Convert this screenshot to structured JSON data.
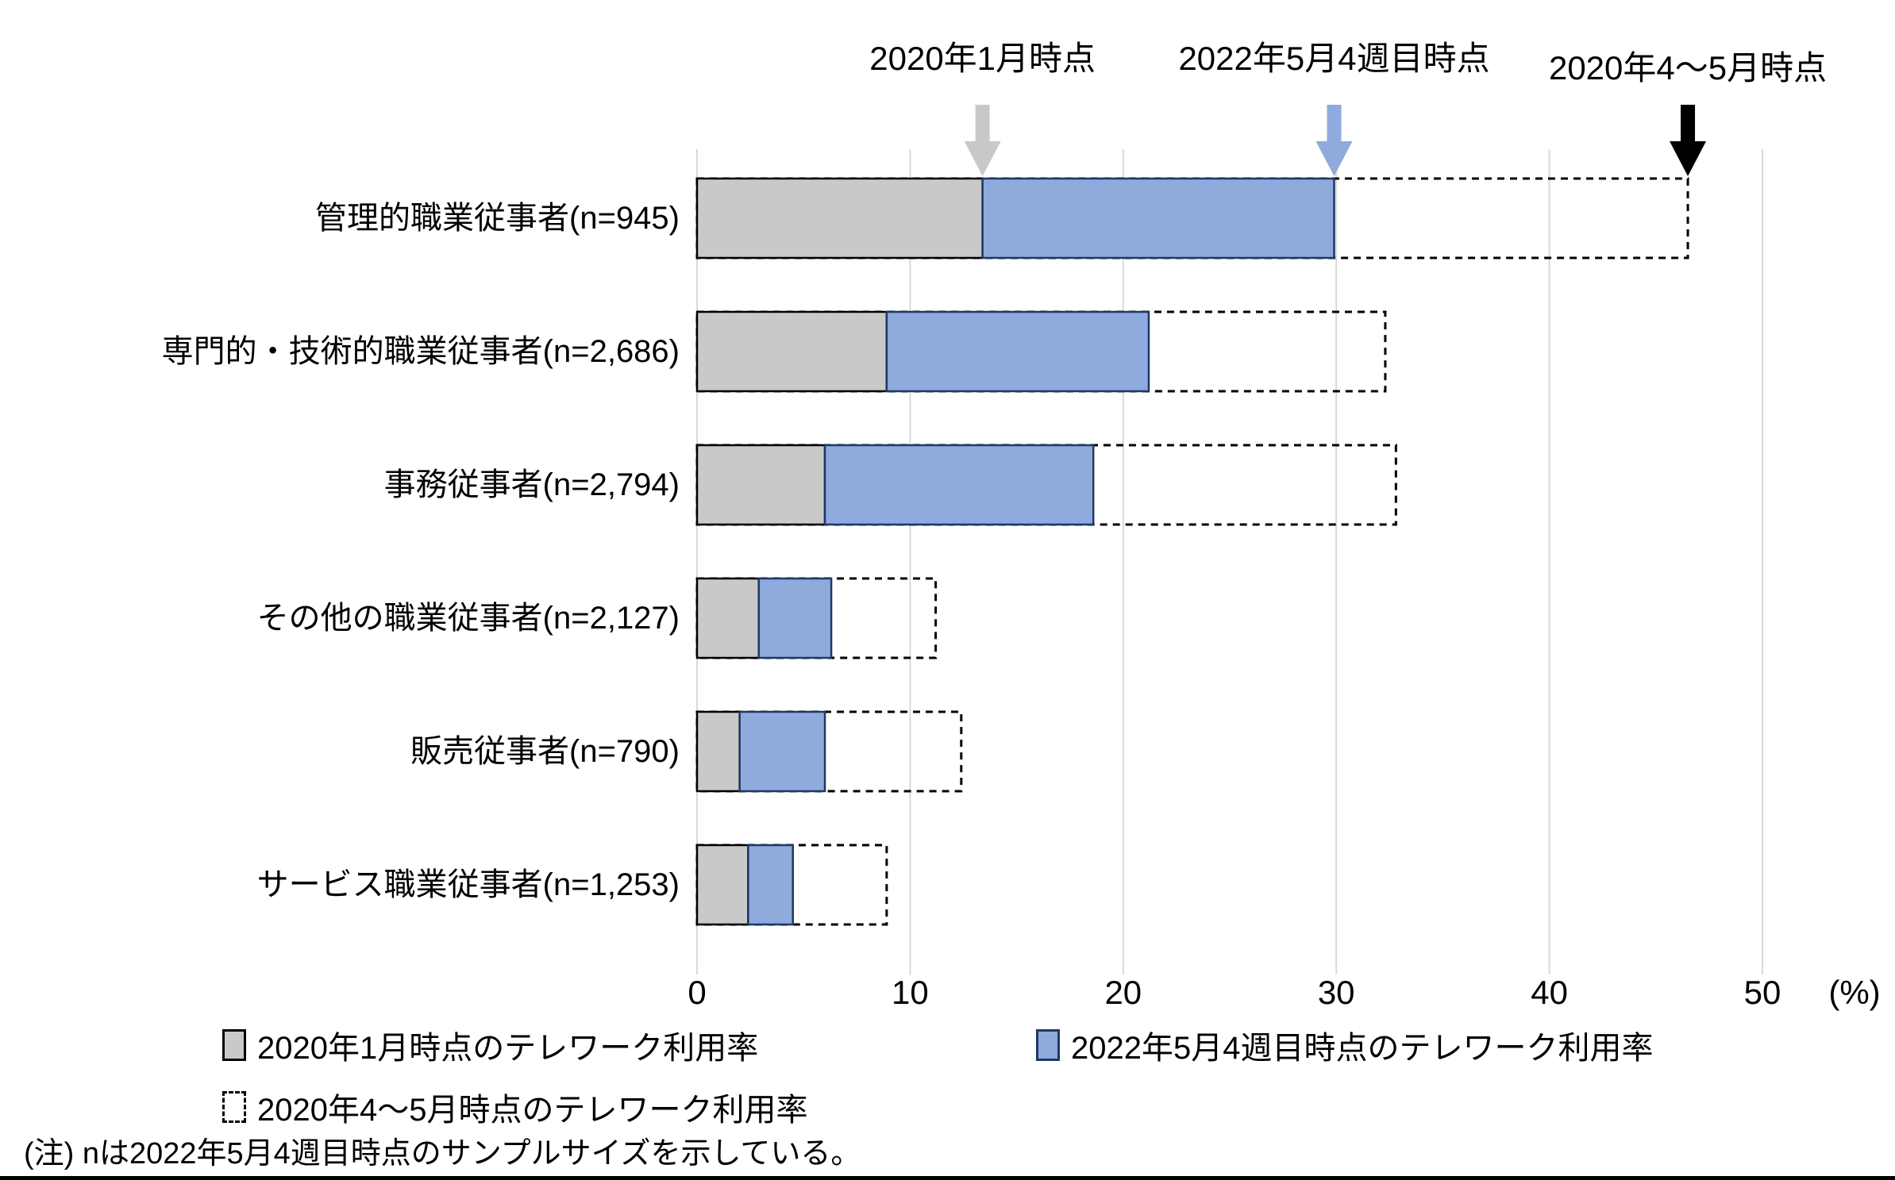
{
  "chart_data": {
    "type": "bar",
    "orientation": "horizontal",
    "title": "",
    "xlabel": "",
    "ylabel": "",
    "x_unit_label": "(%)",
    "xlim": [
      0,
      50
    ],
    "x_ticks": [
      0,
      10,
      20,
      30,
      40,
      50
    ],
    "grid": "vertical",
    "render_note": "Three overlaid series per category; values are bar end positions in percent read from the axis. Gray bar drawn from 0, blue bar continues from gray end to its value, dashed outline box spans 0 to its value.",
    "categories": [
      "管理的職業従事者(n=945)",
      "専門的・技術的職業従事者(n=2,686)",
      "事務従事者(n=2,794)",
      "その他の職業従事者(n=2,127)",
      "販売従事者(n=790)",
      "サービス職業従事者(n=1,253)"
    ],
    "series": [
      {
        "name": "2020年1月時点のテレワーク利用率",
        "style": "gray-filled",
        "fill": "#C9C9C9",
        "border": "#000000",
        "values": [
          13.4,
          8.9,
          6.0,
          2.9,
          2.0,
          2.4
        ]
      },
      {
        "name": "2022年5月4週目時点のテレワーク利用率",
        "style": "blue-filled",
        "fill": "#8FAADC",
        "border": "#1F3864",
        "values": [
          29.9,
          21.2,
          18.6,
          6.3,
          6.0,
          4.5
        ]
      },
      {
        "name": "2020年4〜5月時点のテレワーク利用率",
        "style": "dashed-outline",
        "fill": "#FFFFFF",
        "border": "#000000",
        "values": [
          46.5,
          32.3,
          32.8,
          11.2,
          12.4,
          8.9
        ]
      }
    ],
    "annotations": [
      {
        "label": "2020年1月時点",
        "points_to_pct": 13.4,
        "arrow_color": "#C8C8C8",
        "label_dy": 0
      },
      {
        "label": "2022年5月4週目時点",
        "points_to_pct": 29.9,
        "arrow_color": "#8FAADC",
        "label_dy": 0
      },
      {
        "label": "2020年4〜5月時点",
        "points_to_pct": 46.5,
        "arrow_color": "#000000",
        "label_dy": 12
      }
    ]
  },
  "legend": {
    "gray_label_path_note": "labels mirrored from chart_data.series names"
  },
  "footnote": "(注) nは2022年5月4週目時点のサンプルサイズを示している。",
  "colors": {
    "gridline": "#D9D9D9",
    "text": "#000000",
    "gray_fill": "#C9C9C9",
    "blue_fill": "#8FAADC",
    "blue_border": "#1F3864",
    "black": "#000000",
    "background": "#FFFFFF"
  }
}
